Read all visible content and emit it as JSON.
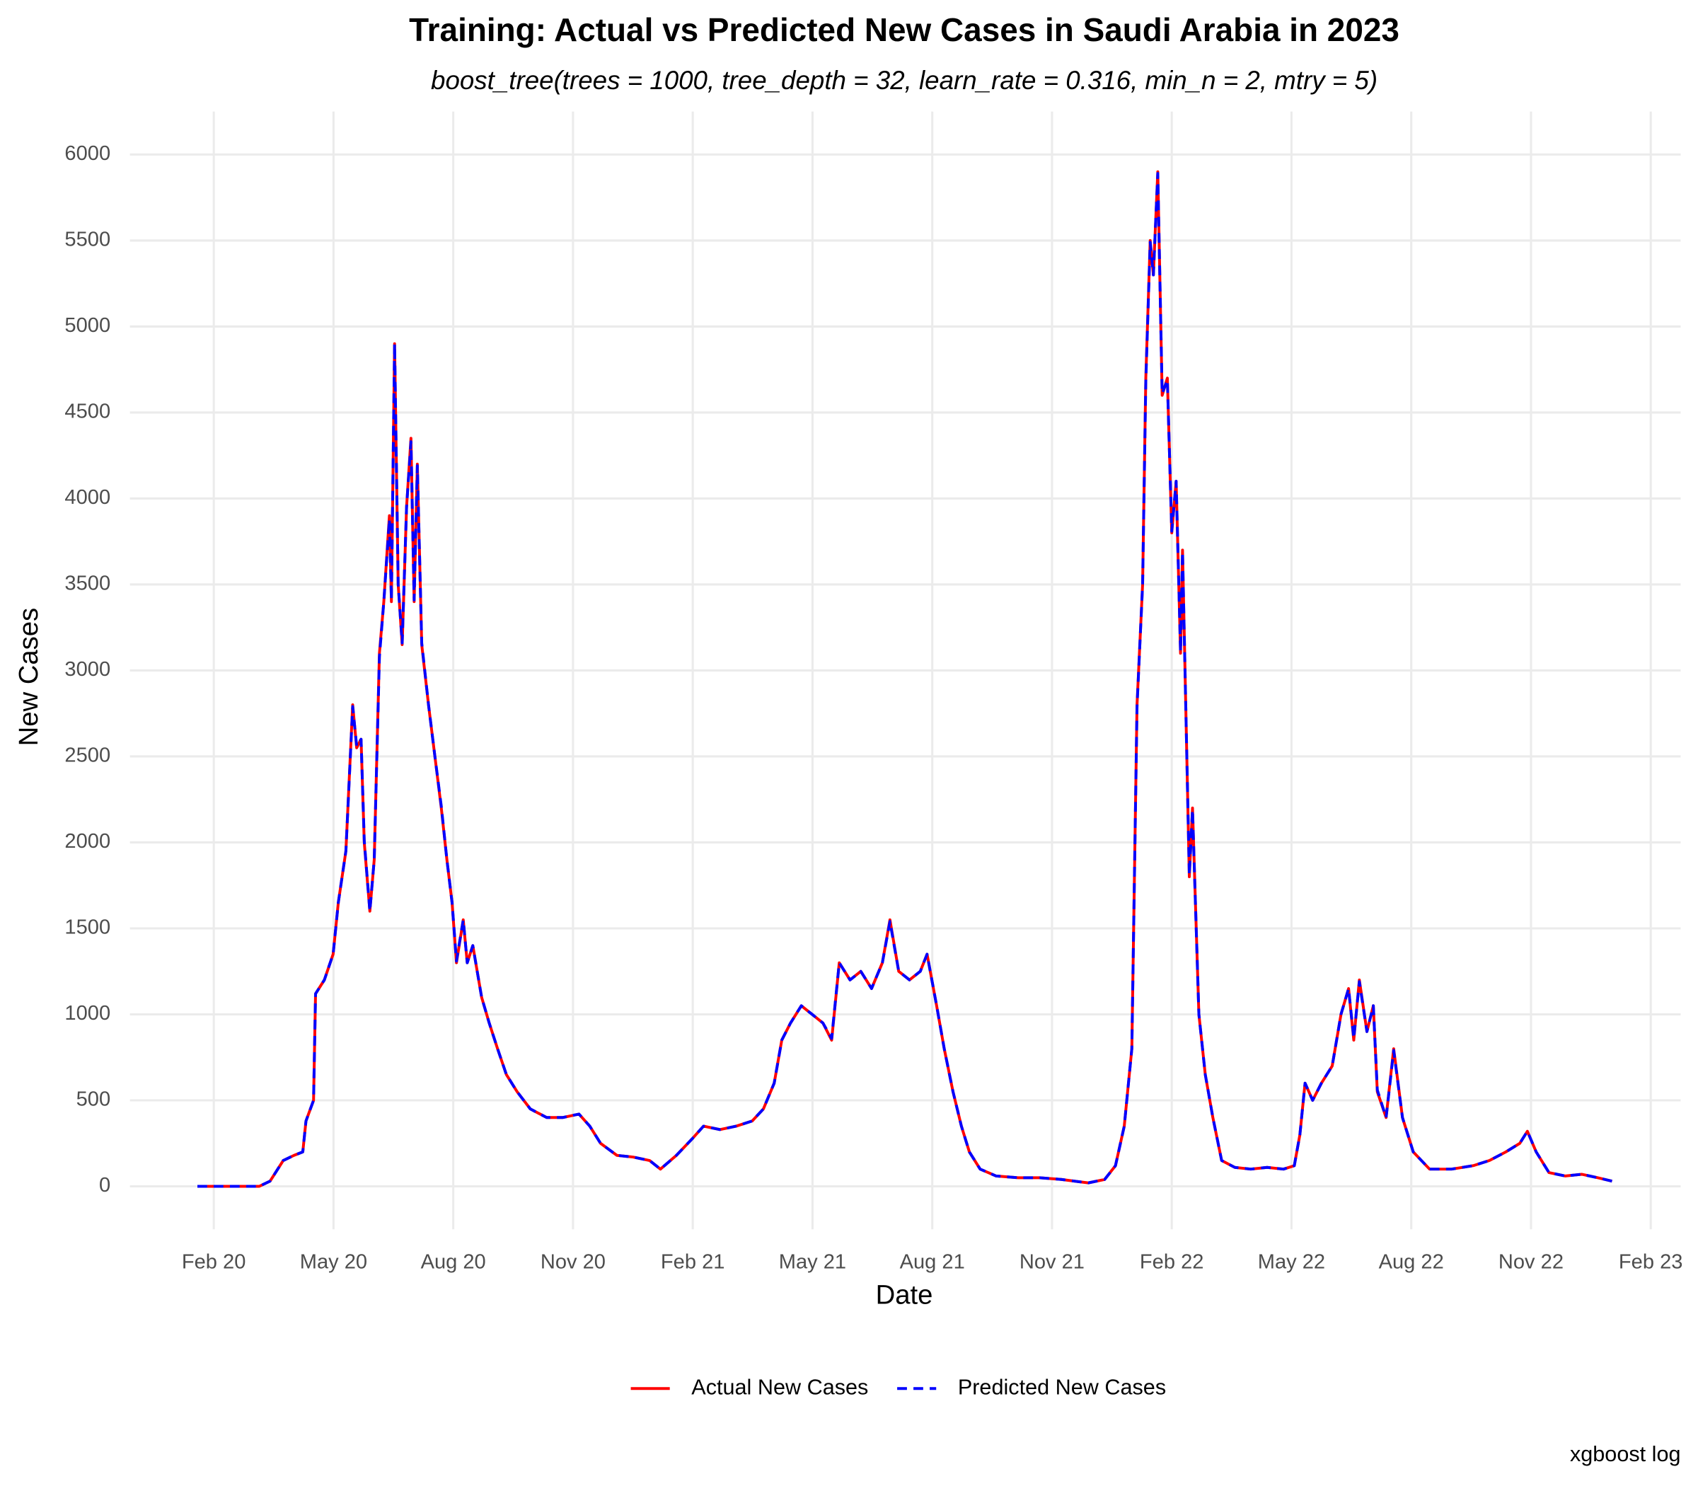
{
  "chart_data": {
    "type": "line",
    "title": "Training: Actual vs Predicted New Cases in Saudi Arabia in 2023",
    "subtitle": "boost_tree(trees = 1000, tree_depth = 32, learn_rate = 0.316, min_n = 2, mtry = 5)",
    "x_label": "Date",
    "y_label": "New Cases",
    "caption": "xgboost log",
    "x": [
      0.59,
      2.14,
      2.41,
      2.74,
      3.01,
      3.23,
      3.31,
      3.5,
      3.55,
      3.77,
      3.99,
      4.12,
      4.31,
      4.48,
      4.58,
      4.69,
      4.77,
      4.91,
      5.02,
      5.15,
      5.26,
      5.4,
      5.45,
      5.53,
      5.62,
      5.72,
      5.83,
      5.94,
      6.02,
      6.1,
      6.21,
      6.38,
      6.54,
      6.7,
      6.84,
      6.97,
      7.08,
      7.25,
      7.35,
      7.49,
      7.71,
      7.9,
      8.11,
      8.33,
      8.6,
      8.93,
      9.34,
      9.74,
      10.15,
      10.42,
      10.69,
      11.1,
      11.51,
      11.92,
      12.19,
      12.59,
      13.0,
      13.27,
      13.68,
      14.09,
      14.49,
      14.77,
      15.04,
      15.23,
      15.45,
      15.72,
      15.99,
      16.26,
      16.48,
      16.67,
      16.94,
      17.21,
      17.48,
      17.75,
      17.94,
      18.16,
      18.43,
      18.7,
      18.87,
      19.11,
      19.3,
      19.52,
      19.73,
      19.93,
      20.2,
      20.6,
      21.15,
      21.69,
      22.23,
      22.91,
      23.32,
      23.59,
      23.81,
      24.0,
      24.13,
      24.27,
      24.35,
      24.46,
      24.54,
      24.65,
      24.76,
      24.89,
      25.0,
      25.11,
      25.22,
      25.27,
      25.44,
      25.52,
      25.68,
      25.84,
      26.03,
      26.25,
      26.58,
      26.98,
      27.39,
      27.8,
      28.07,
      28.21,
      28.34,
      28.53,
      28.75,
      29.02,
      29.24,
      29.43,
      29.56,
      29.7,
      29.89,
      30.05,
      30.15,
      30.37,
      30.56,
      30.78,
      31.05,
      31.46,
      32.01,
      32.55,
      32.96,
      33.37,
      33.72,
      33.91,
      34.13,
      34.45,
      34.86,
      35.27,
      35.67,
      36.03
    ],
    "series": [
      {
        "name": "Actual New Cases",
        "color": "#ff0000",
        "dash": false,
        "values": [
          0,
          0,
          30,
          150,
          180,
          200,
          380,
          500,
          1120,
          1200,
          1350,
          1650,
          1950,
          2800,
          2550,
          2600,
          2000,
          1600,
          1900,
          3100,
          3400,
          3900,
          3400,
          4900,
          3500,
          3150,
          3950,
          4350,
          3400,
          4200,
          3150,
          2800,
          2500,
          2200,
          1900,
          1650,
          1300,
          1550,
          1300,
          1400,
          1100,
          950,
          800,
          650,
          550,
          450,
          400,
          400,
          420,
          350,
          250,
          180,
          170,
          150,
          100,
          180,
          280,
          350,
          330,
          350,
          380,
          450,
          600,
          850,
          950,
          1050,
          1000,
          950,
          850,
          1300,
          1200,
          1250,
          1150,
          1300,
          1550,
          1250,
          1200,
          1250,
          1350,
          1050,
          800,
          550,
          350,
          200,
          100,
          60,
          50,
          50,
          40,
          20,
          40,
          120,
          350,
          800,
          2800,
          3500,
          4700,
          5500,
          5300,
          5900,
          4600,
          4700,
          3800,
          4100,
          3100,
          3700,
          1800,
          2200,
          1000,
          650,
          400,
          150,
          110,
          100,
          110,
          100,
          120,
          300,
          600,
          500,
          600,
          700,
          1000,
          1150,
          850,
          1200,
          900,
          1050,
          550,
          400,
          800,
          400,
          200,
          100,
          100,
          120,
          150,
          200,
          250,
          320,
          200,
          80,
          60,
          70,
          50,
          30
        ]
      },
      {
        "name": "Predicted New Cases",
        "color": "#0000ff",
        "dash": true,
        "values": [
          0,
          0,
          30,
          150,
          180,
          200,
          380,
          500,
          1120,
          1200,
          1350,
          1650,
          1950,
          2790,
          2560,
          2600,
          2010,
          1600,
          1900,
          3080,
          3400,
          3880,
          3410,
          4900,
          3500,
          3160,
          3950,
          4330,
          3410,
          4190,
          3160,
          2800,
          2500,
          2210,
          1900,
          1650,
          1310,
          1550,
          1300,
          1400,
          1100,
          950,
          800,
          650,
          550,
          450,
          400,
          400,
          420,
          350,
          250,
          180,
          170,
          150,
          100,
          180,
          280,
          350,
          330,
          350,
          380,
          450,
          600,
          850,
          950,
          1050,
          1000,
          950,
          860,
          1300,
          1200,
          1250,
          1150,
          1300,
          1540,
          1250,
          1200,
          1250,
          1350,
          1050,
          800,
          550,
          350,
          200,
          100,
          60,
          50,
          50,
          40,
          20,
          40,
          120,
          350,
          800,
          2790,
          3500,
          4680,
          5490,
          5300,
          5890,
          4610,
          4690,
          3810,
          4100,
          3110,
          3690,
          1810,
          2190,
          1000,
          650,
          400,
          150,
          110,
          100,
          110,
          100,
          120,
          300,
          600,
          500,
          600,
          700,
          1000,
          1150,
          860,
          1190,
          900,
          1050,
          560,
          400,
          790,
          400,
          200,
          100,
          100,
          120,
          150,
          200,
          250,
          320,
          200,
          80,
          60,
          70,
          50,
          30
        ]
      }
    ],
    "xlim": [
      -1.1,
      37.75
    ],
    "xticks": [
      {
        "value": 1,
        "label": "Feb 20"
      },
      {
        "value": 4,
        "label": "May 20"
      },
      {
        "value": 7,
        "label": "Aug 20"
      },
      {
        "value": 10,
        "label": "Nov 20"
      },
      {
        "value": 13,
        "label": "Feb 21"
      },
      {
        "value": 16,
        "label": "May 21"
      },
      {
        "value": 19,
        "label": "Aug 21"
      },
      {
        "value": 22,
        "label": "Nov 21"
      },
      {
        "value": 25,
        "label": "Feb 22"
      },
      {
        "value": 28,
        "label": "May 22"
      },
      {
        "value": 31,
        "label": "Aug 22"
      },
      {
        "value": 34,
        "label": "Nov 22"
      },
      {
        "value": 37,
        "label": "Feb 23"
      }
    ],
    "ylim": [
      -250,
      6250
    ],
    "yticks": [
      0,
      500,
      1000,
      1500,
      2000,
      2500,
      3000,
      3500,
      4000,
      4500,
      5000,
      5500,
      6000
    ],
    "grid": true,
    "legend": "bottom"
  }
}
